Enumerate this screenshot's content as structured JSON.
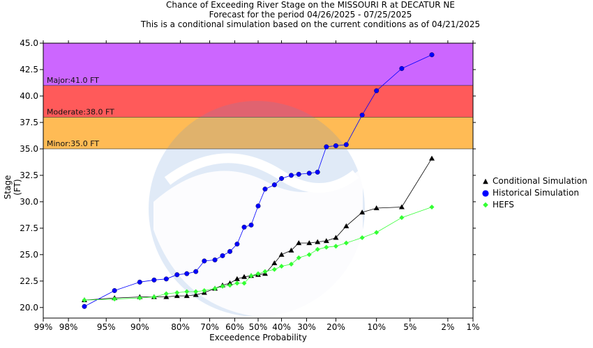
{
  "titles": {
    "line1": "Chance of Exceeding River Stage on the MISSOURI R at DECATUR NE",
    "line2": "Forecast for the period 04/26/2025 - 07/25/2025",
    "line3": "This is a conditional simulation based on the current conditions as of 04/21/2025"
  },
  "watermark": "NOAA seal - National Oceanic and Atmospheric Administration, U.S. Department of Commerce",
  "chart_data": {
    "type": "line",
    "title": "Chance of Exceeding River Stage on the MISSOURI R at DECATUR NE",
    "xlabel": "Exceedence Probability",
    "ylabel": "Stage (FT)",
    "x_scale": "normal-probability (reversed, 99% to 1%)",
    "ylim": [
      19.0,
      45.0
    ],
    "x_ticks": [
      "99%",
      "98%",
      "95%",
      "90%",
      "80%",
      "70%",
      "60%",
      "50%",
      "40%",
      "30%",
      "20%",
      "10%",
      "5%",
      "2%",
      "1%"
    ],
    "x_tick_values": [
      99,
      98,
      95,
      90,
      80,
      70,
      60,
      50,
      40,
      30,
      20,
      10,
      5,
      2,
      1
    ],
    "y_ticks": [
      "20.0",
      "22.5",
      "25.0",
      "27.5",
      "30.0",
      "32.5",
      "35.0",
      "37.5",
      "40.0",
      "42.5",
      "45.0"
    ],
    "y_tick_values": [
      20.0,
      22.5,
      25.0,
      27.5,
      30.0,
      32.5,
      35.0,
      37.5,
      40.0,
      42.5,
      45.0
    ],
    "grid": false,
    "legend_position": "right",
    "flood_categories": [
      {
        "label": "Minor:35.0 FT",
        "from": 35.0,
        "to": 38.0,
        "color": "#ffbb55"
      },
      {
        "label": "Moderate:38.0 FT",
        "from": 38.0,
        "to": 41.0,
        "color": "#ff5a5a"
      },
      {
        "label": "Major:41.0 FT",
        "from": 41.0,
        "to": 45.0,
        "color": "#cc66ff"
      }
    ],
    "series": [
      {
        "name": "Conditional Simulation",
        "color": "#000000",
        "marker": "triangle",
        "x": [
          97,
          94,
          90,
          87,
          84,
          81,
          78,
          75,
          72,
          68,
          65,
          62,
          59,
          56,
          53,
          50,
          47,
          43,
          40,
          36,
          33,
          29,
          26,
          23,
          20,
          17,
          13,
          10,
          6,
          3
        ],
        "y": [
          20.7,
          20.9,
          21.0,
          21.0,
          21.0,
          21.1,
          21.1,
          21.2,
          21.4,
          21.8,
          22.1,
          22.3,
          22.7,
          22.9,
          23.0,
          23.1,
          23.2,
          24.2,
          25.0,
          25.4,
          26.1,
          26.1,
          26.2,
          26.3,
          26.6,
          27.7,
          29.0,
          29.4,
          29.5,
          34.1
        ]
      },
      {
        "name": "Historical Simulation",
        "color": "#0000ff",
        "marker": "circle",
        "x": [
          97,
          94,
          90,
          87,
          84,
          81,
          78,
          75,
          72,
          68,
          65,
          62,
          59,
          56,
          53,
          50,
          47,
          43,
          40,
          36,
          33,
          29,
          26,
          23,
          20,
          17,
          13,
          10,
          6,
          3
        ],
        "y": [
          20.1,
          21.6,
          22.4,
          22.6,
          22.7,
          23.1,
          23.2,
          23.4,
          24.4,
          24.5,
          24.9,
          25.3,
          26.0,
          27.6,
          27.8,
          29.6,
          31.2,
          31.6,
          32.2,
          32.5,
          32.6,
          32.7,
          32.8,
          35.2,
          35.3,
          35.4,
          38.2,
          40.5,
          42.6,
          43.9
        ]
      },
      {
        "name": "HEFS",
        "color": "#33ff33",
        "marker": "diamond",
        "x": [
          97,
          94,
          90,
          87,
          84,
          81,
          78,
          75,
          72,
          68,
          65,
          62,
          59,
          56,
          53,
          50,
          47,
          43,
          40,
          36,
          33,
          29,
          26,
          23,
          20,
          17,
          13,
          10,
          6,
          3
        ],
        "y": [
          20.7,
          20.8,
          20.9,
          21.0,
          21.3,
          21.4,
          21.5,
          21.5,
          21.6,
          21.8,
          22.0,
          22.1,
          22.3,
          22.3,
          23.0,
          23.2,
          23.4,
          23.6,
          23.9,
          24.1,
          24.7,
          25.0,
          25.5,
          25.7,
          25.8,
          26.1,
          26.6,
          27.1,
          28.5,
          29.5
        ]
      }
    ]
  }
}
